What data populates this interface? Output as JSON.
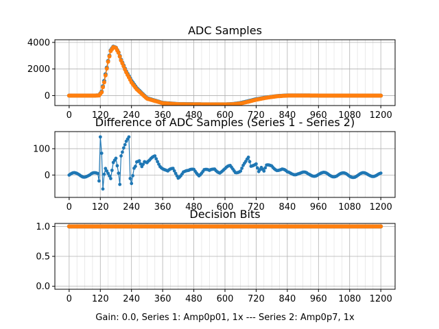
{
  "figure": {
    "footer_label": "Gain: 0.0, Series 1: Amp0p01, 1x --- Series 2: Amp0p7, 1x",
    "colors": {
      "series1": "#1f77b4",
      "series2": "#ff7f0e"
    }
  },
  "chart_data": [
    {
      "type": "line",
      "title": "ADC Samples",
      "xlabel": "",
      "ylabel": "",
      "xlim": [
        -55,
        1255
      ],
      "ylim": [
        -750,
        4200
      ],
      "xticks": [
        0,
        120,
        240,
        360,
        480,
        600,
        720,
        840,
        960,
        1080,
        1200
      ],
      "yticks": [
        0,
        2000,
        4000
      ],
      "grid": true,
      "series": [
        {
          "name": "",
          "color": "#1f77b4",
          "x": [
            0,
            50,
            100,
            115,
            125,
            135,
            150,
            160,
            170,
            180,
            190,
            200,
            220,
            240,
            260,
            300,
            360,
            420,
            480,
            540,
            600,
            630,
            660,
            690,
            720,
            760,
            800,
            840,
            900,
            960,
            1020,
            1080,
            1140,
            1200
          ],
          "y": [
            0,
            0,
            0,
            20,
            300,
            1100,
            2600,
            3400,
            3680,
            3600,
            3250,
            2700,
            1800,
            1100,
            550,
            -200,
            -550,
            -640,
            -650,
            -660,
            -660,
            -640,
            -560,
            -420,
            -280,
            -140,
            -40,
            10,
            10,
            0,
            0,
            0,
            0,
            0
          ]
        },
        {
          "name": "",
          "color": "#ff7f0e",
          "x": [
            0,
            50,
            100,
            115,
            125,
            135,
            150,
            160,
            170,
            180,
            190,
            200,
            220,
            240,
            260,
            300,
            360,
            420,
            480,
            540,
            600,
            630,
            660,
            690,
            720,
            760,
            800,
            840,
            900,
            960,
            1020,
            1080,
            1140,
            1200
          ],
          "y": [
            0,
            0,
            0,
            10,
            250,
            1000,
            2550,
            3350,
            3650,
            3580,
            3220,
            2650,
            1750,
            1000,
            480,
            -230,
            -570,
            -650,
            -660,
            -670,
            -670,
            -650,
            -590,
            -460,
            -310,
            -160,
            -50,
            0,
            5,
            0,
            0,
            0,
            0,
            0
          ]
        }
      ]
    },
    {
      "type": "line",
      "title": "Difference of ADC Samples (Series 1 - Series 2)",
      "xlabel": "",
      "ylabel": "",
      "xlim": [
        -55,
        1255
      ],
      "ylim": [
        -85,
        165
      ],
      "xticks": [
        0,
        120,
        240,
        360,
        480,
        600,
        720,
        840,
        960,
        1080,
        1200
      ],
      "yticks": [
        0,
        100
      ],
      "grid": true,
      "series": [
        {
          "name": "",
          "color": "#1f77b4",
          "x": [
            0,
            40,
            80,
            110,
            115,
            120,
            122,
            125,
            128,
            130,
            135,
            140,
            150,
            160,
            170,
            180,
            190,
            195,
            200,
            210,
            220,
            230,
            235,
            240,
            245,
            250,
            255,
            260,
            270,
            280,
            290,
            300,
            310,
            320,
            330,
            340,
            350,
            360,
            380,
            400,
            420,
            440,
            460,
            480,
            500,
            520,
            540,
            560,
            580,
            600,
            620,
            640,
            660,
            670,
            680,
            690,
            700,
            710,
            720,
            730,
            740,
            750,
            760,
            780,
            800,
            820,
            840,
            880,
            920,
            960,
            1000,
            1040,
            1080,
            1120,
            1160,
            1200
          ],
          "y": [
            0,
            2,
            -3,
            5,
            -20,
            150,
            20,
            90,
            -10,
            -45,
            10,
            30,
            5,
            -20,
            40,
            60,
            10,
            -30,
            80,
            110,
            130,
            140,
            -20,
            -40,
            -10,
            20,
            30,
            50,
            60,
            40,
            55,
            45,
            50,
            60,
            70,
            55,
            40,
            30,
            10,
            20,
            -5,
            15,
            10,
            20,
            5,
            20,
            10,
            25,
            15,
            20,
            30,
            15,
            20,
            35,
            45,
            60,
            30,
            40,
            50,
            20,
            30,
            10,
            30,
            35,
            25,
            20,
            5,
            10,
            0,
            5,
            0,
            2,
            -2,
            0,
            3,
            0
          ]
        }
      ]
    },
    {
      "type": "scatter",
      "title": "Decision Bits",
      "xlabel": "Gain: 0.0, Series 1: Amp0p01, 1x --- Series 2: Amp0p7, 1x",
      "ylabel": "",
      "xlim": [
        -55,
        1255
      ],
      "ylim": [
        -0.05,
        1.05
      ],
      "xticks": [
        0,
        120,
        240,
        360,
        480,
        600,
        720,
        840,
        960,
        1080,
        1200
      ],
      "yticks": [
        0.0,
        0.5,
        1.0
      ],
      "grid": true,
      "series": [
        {
          "name": "",
          "color": "#1f77b4",
          "x": [
            0,
            1200
          ],
          "y": [
            1,
            1
          ]
        },
        {
          "name": "",
          "color": "#ff7f0e",
          "x": [
            0,
            1200
          ],
          "y": [
            1,
            1
          ]
        }
      ]
    }
  ]
}
